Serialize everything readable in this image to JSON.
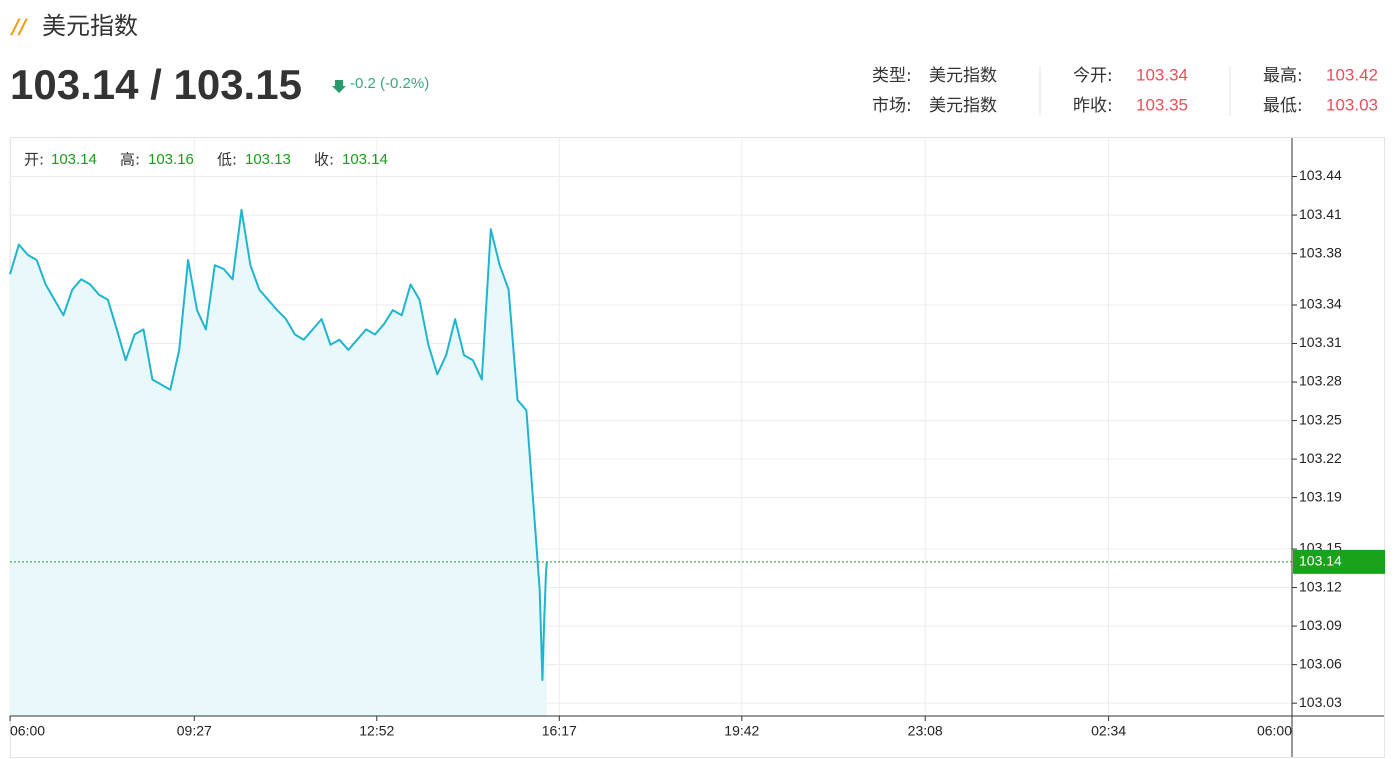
{
  "header": {
    "title": "美元指数",
    "bid": "103.14",
    "separator": "/",
    "ask": "103.15",
    "change": "-0.2 (-0.2%)",
    "info": [
      {
        "label": "类型:",
        "value": "美元指数"
      },
      {
        "label": "今开:",
        "value": "103.34"
      },
      {
        "label": "最高:",
        "value": "103.42"
      },
      {
        "label": "市场:",
        "value": "美元指数"
      },
      {
        "label": "昨收:",
        "value": "103.35"
      },
      {
        "label": "最低:",
        "value": "103.03"
      }
    ]
  },
  "chart_data": {
    "type": "line",
    "ohlc": [
      {
        "label": "开:",
        "value": "103.14"
      },
      {
        "label": "高:",
        "value": "103.16"
      },
      {
        "label": "低:",
        "value": "103.13"
      },
      {
        "label": "收:",
        "value": "103.14"
      }
    ],
    "x": [
      "06:00",
      "06:10",
      "06:20",
      "06:30",
      "06:40",
      "06:50",
      "07:00",
      "07:10",
      "07:20",
      "07:30",
      "07:40",
      "07:50",
      "08:00",
      "08:10",
      "08:20",
      "08:30",
      "08:40",
      "08:50",
      "09:00",
      "09:10",
      "09:20",
      "09:30",
      "09:40",
      "09:50",
      "10:00",
      "10:10",
      "10:20",
      "10:30",
      "10:40",
      "10:50",
      "11:00",
      "11:10",
      "11:20",
      "11:30",
      "11:40",
      "11:50",
      "12:00",
      "12:10",
      "12:20",
      "12:30",
      "12:40",
      "12:50",
      "13:00",
      "13:10",
      "13:20",
      "13:30",
      "13:40",
      "13:50",
      "14:00",
      "14:10",
      "14:20",
      "14:30",
      "14:40",
      "14:50",
      "15:00",
      "15:10",
      "15:20",
      "15:30",
      "15:40",
      "15:50",
      "15:55",
      "15:58",
      "16:00",
      "16:02",
      "16:03"
    ],
    "series": [
      {
        "name": "美元指数",
        "color": "#1fb5d0",
        "values": [
          103.364,
          103.387,
          103.379,
          103.375,
          103.356,
          103.344,
          103.332,
          103.352,
          103.36,
          103.356,
          103.348,
          103.344,
          103.321,
          103.297,
          103.317,
          103.321,
          103.282,
          103.278,
          103.274,
          103.305,
          103.375,
          103.336,
          103.321,
          103.371,
          103.368,
          103.36,
          103.414,
          103.371,
          103.352,
          103.344,
          103.336,
          103.329,
          103.317,
          103.313,
          103.321,
          103.329,
          103.309,
          103.313,
          103.305,
          103.313,
          103.321,
          103.317,
          103.325,
          103.336,
          103.332,
          103.356,
          103.344,
          103.309,
          103.286,
          103.301,
          103.329,
          103.301,
          103.297,
          103.282,
          103.399,
          103.371,
          103.352,
          103.266,
          103.258,
          103.165,
          103.118,
          103.048,
          103.095,
          103.13,
          103.14
        ]
      }
    ],
    "area_color": "#e9f8fa",
    "last_value": 103.14,
    "last_color": "#1aa31a",
    "xlim": [
      "06:00",
      "06:00"
    ],
    "xticks": [
      "06:00",
      "09:27",
      "12:52",
      "16:17",
      "19:42",
      "23:08",
      "02:34",
      "06:00"
    ],
    "ylim": [
      103.02,
      103.47
    ],
    "yticks": [
      103.03,
      103.06,
      103.09,
      103.12,
      103.15,
      103.19,
      103.22,
      103.25,
      103.28,
      103.31,
      103.34,
      103.38,
      103.41,
      103.44
    ],
    "grid": true
  }
}
